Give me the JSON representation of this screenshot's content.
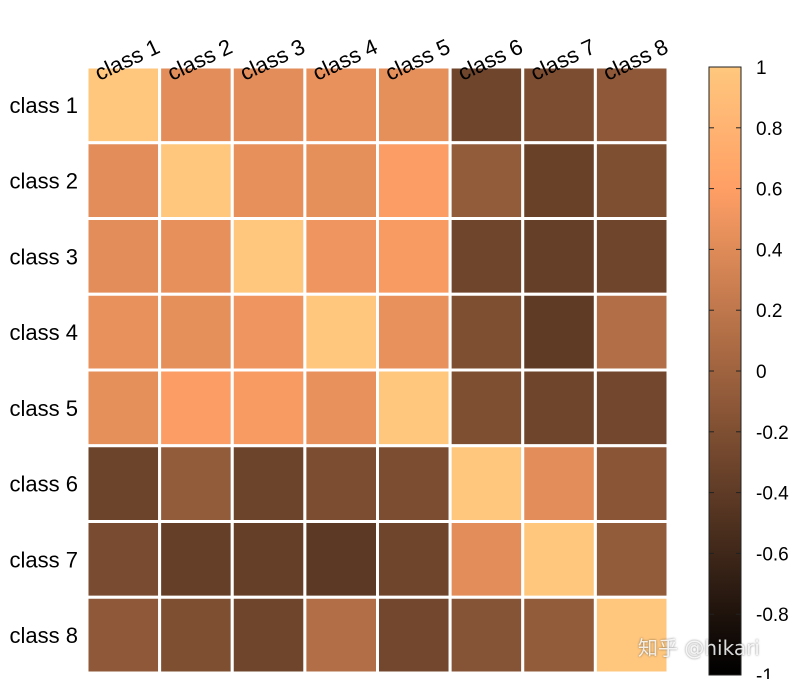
{
  "chart_data": {
    "type": "heatmap",
    "x_categories": [
      "class 1",
      "class 2",
      "class 3",
      "class 4",
      "class 5",
      "class 6",
      "class 7",
      "class 8"
    ],
    "y_categories": [
      "class 1",
      "class 2",
      "class 3",
      "class 4",
      "class 5",
      "class 6",
      "class 7",
      "class 8"
    ],
    "values": [
      [
        1,
        0.42,
        0.42,
        0.46,
        0.44,
        -0.3,
        -0.22,
        -0.1
      ],
      [
        0.42,
        1,
        0.45,
        0.44,
        0.58,
        -0.08,
        -0.34,
        -0.2
      ],
      [
        0.42,
        0.45,
        1,
        0.5,
        0.56,
        -0.3,
        -0.36,
        -0.3
      ],
      [
        0.46,
        0.44,
        0.5,
        1,
        0.46,
        -0.2,
        -0.4,
        0.12
      ],
      [
        0.44,
        0.58,
        0.56,
        0.46,
        1,
        -0.2,
        -0.3,
        -0.28
      ],
      [
        -0.32,
        -0.08,
        -0.32,
        -0.22,
        -0.22,
        1,
        0.42,
        -0.14
      ],
      [
        -0.24,
        -0.36,
        -0.36,
        -0.42,
        -0.3,
        0.42,
        1,
        -0.08
      ],
      [
        -0.1,
        -0.2,
        -0.3,
        0.12,
        -0.28,
        -0.16,
        -0.08,
        1
      ]
    ],
    "colormap": "copper",
    "clim": [
      -1,
      1
    ],
    "colorbar_ticks": [
      "1",
      "0.8",
      "0.6",
      "0.4",
      "0.2",
      "0",
      "-0.2",
      "-0.4",
      "-0.6",
      "-0.8",
      "-1"
    ],
    "colorbar_tick_values": [
      1,
      0.8,
      0.6,
      0.4,
      0.2,
      0,
      -0.2,
      -0.4,
      -0.6,
      -0.8,
      -1
    ],
    "grid_color": "#ffffff"
  },
  "watermark": "知乎 @hikari"
}
